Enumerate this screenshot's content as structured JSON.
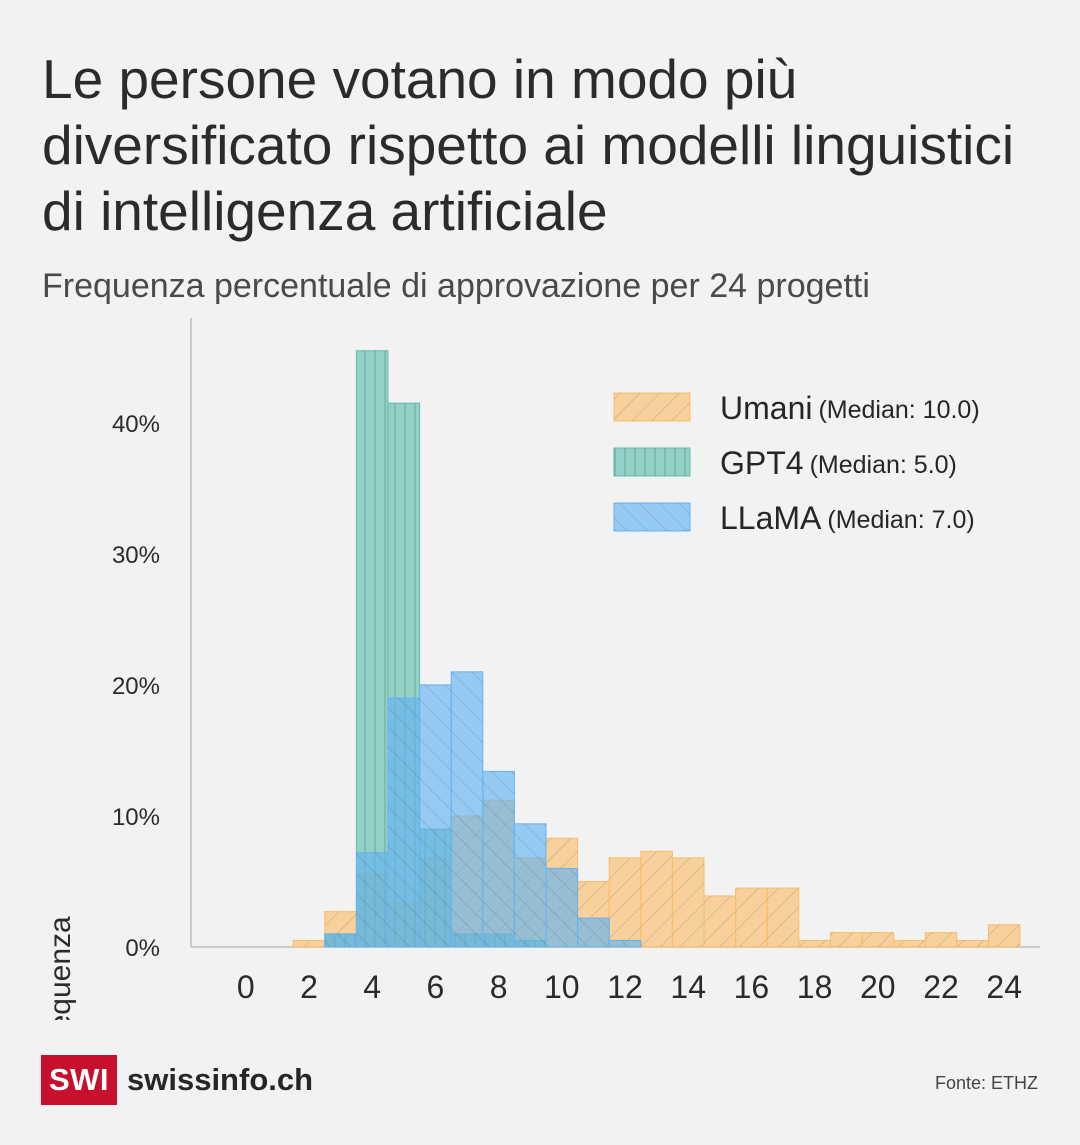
{
  "title": "Le persone votano in modo più diversificato rispetto ai modelli linguistici di intelligenza artificiale",
  "subtitle": "Frequenza percentuale di approvazione per 24 progetti",
  "brand": {
    "logo_text": "SWI",
    "site": "swissinfo.ch",
    "color": "#c8102e"
  },
  "source": "Fonte: ETHZ",
  "chart_data": {
    "type": "histogram",
    "xlabel": "",
    "ylabel": "Frequenza",
    "xlim": [
      -0.5,
      24.5
    ],
    "ylim": [
      0,
      0.48
    ],
    "x_ticks": [
      0,
      2,
      4,
      6,
      8,
      10,
      12,
      14,
      16,
      18,
      20,
      22,
      24
    ],
    "x_tick_labels": [
      "0",
      "2",
      "4",
      "6",
      "8",
      "10",
      "12",
      "14",
      "16",
      "18",
      "20",
      "22",
      "24"
    ],
    "y_ticks": [
      0,
      0.1,
      0.2,
      0.3,
      0.4
    ],
    "y_tick_labels": [
      "0%",
      "10%",
      "20%",
      "30%",
      "40%"
    ],
    "bins": [
      0,
      1,
      2,
      3,
      4,
      5,
      6,
      7,
      8,
      9,
      10,
      11,
      12,
      13,
      14,
      15,
      16,
      17,
      18,
      19,
      20,
      21,
      22,
      23,
      24
    ],
    "grid": false,
    "legend_position": "top-right",
    "series": [
      {
        "name": "Umani",
        "median_label": "(Median: 10.0)",
        "color": "#f9bd6b",
        "hatch": "diagonal",
        "values": [
          0,
          0,
          0.005,
          0.027,
          0.056,
          0.034,
          0.068,
          0.1,
          0.112,
          0.068,
          0.083,
          0.05,
          0.068,
          0.073,
          0.068,
          0.039,
          0.045,
          0.045,
          0.005,
          0.011,
          0.011,
          0.005,
          0.011,
          0.005,
          0.017
        ]
      },
      {
        "name": "GPT4",
        "median_label": "(Median: 5.0)",
        "color": "#5fbfad",
        "hatch": "vertical",
        "values": [
          0,
          0,
          0,
          0.01,
          0.455,
          0.415,
          0.09,
          0.01,
          0.01,
          0.005,
          0,
          0,
          0,
          0,
          0,
          0,
          0,
          0,
          0,
          0,
          0,
          0,
          0,
          0,
          0
        ]
      },
      {
        "name": "LLaMA",
        "median_label": "(Median: 7.0)",
        "color": "#66b3f2",
        "hatch": "backdiagonal",
        "values": [
          0,
          0,
          0,
          0.01,
          0.072,
          0.19,
          0.2,
          0.21,
          0.134,
          0.094,
          0.06,
          0.022,
          0.005,
          0,
          0,
          0,
          0,
          0,
          0,
          0,
          0,
          0,
          0,
          0,
          0
        ]
      }
    ]
  }
}
